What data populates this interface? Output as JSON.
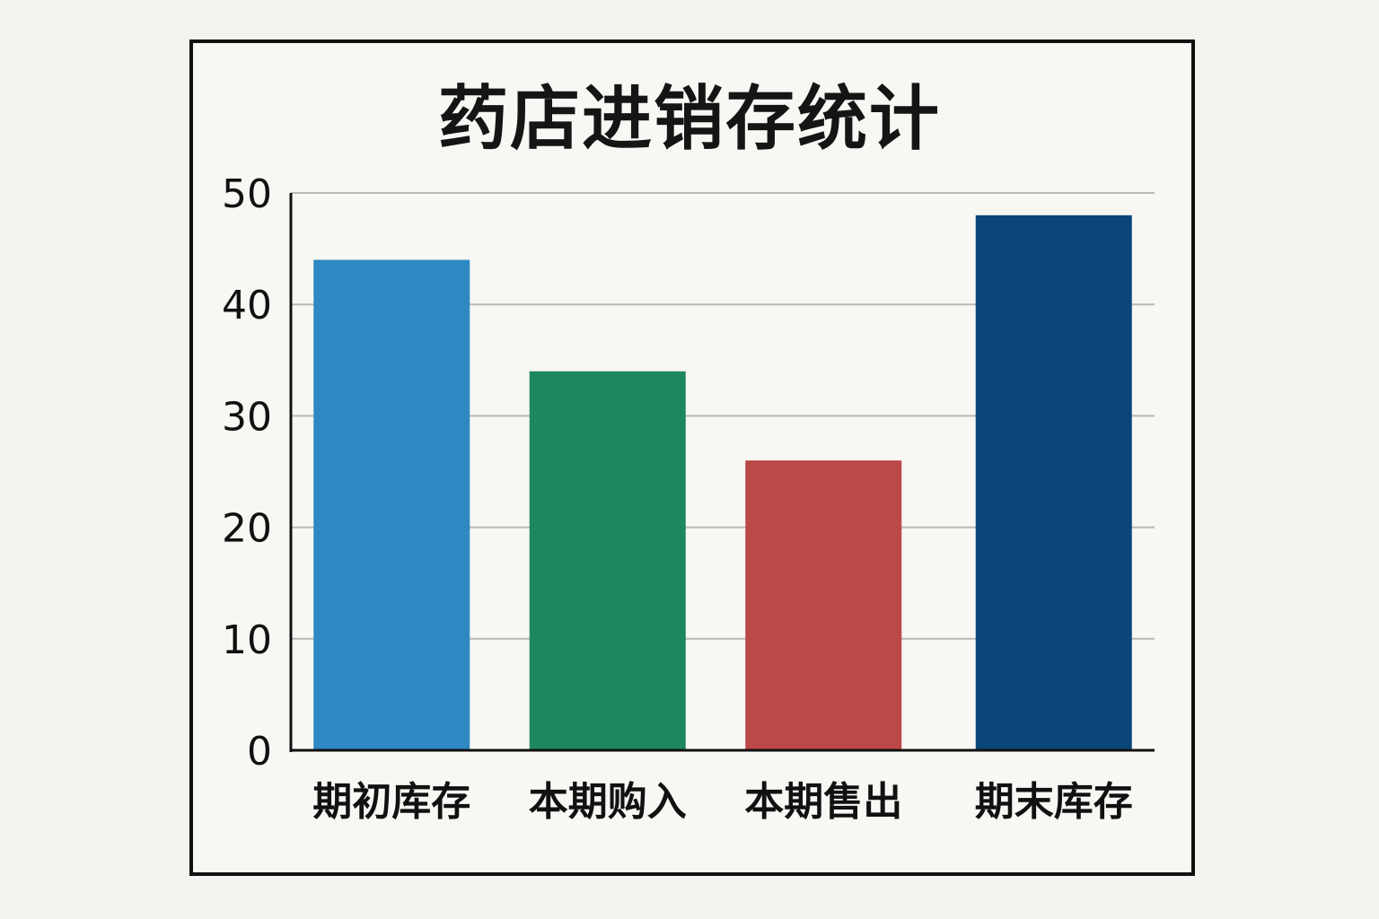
{
  "chart_data": {
    "type": "bar",
    "title": "药店进销存统计",
    "xlabel": "",
    "ylabel": "",
    "categories": [
      "期初库存",
      "本期购入",
      "本期售出",
      "期末库存"
    ],
    "values": [
      44,
      34,
      26,
      48
    ],
    "colors": [
      "#2e88c4",
      "#1f8760",
      "#bd4848",
      "#0a4677"
    ],
    "ylim": [
      0,
      50
    ],
    "yticks": [
      0,
      10,
      20,
      30,
      40,
      50
    ],
    "grid": true,
    "legend": "none"
  }
}
